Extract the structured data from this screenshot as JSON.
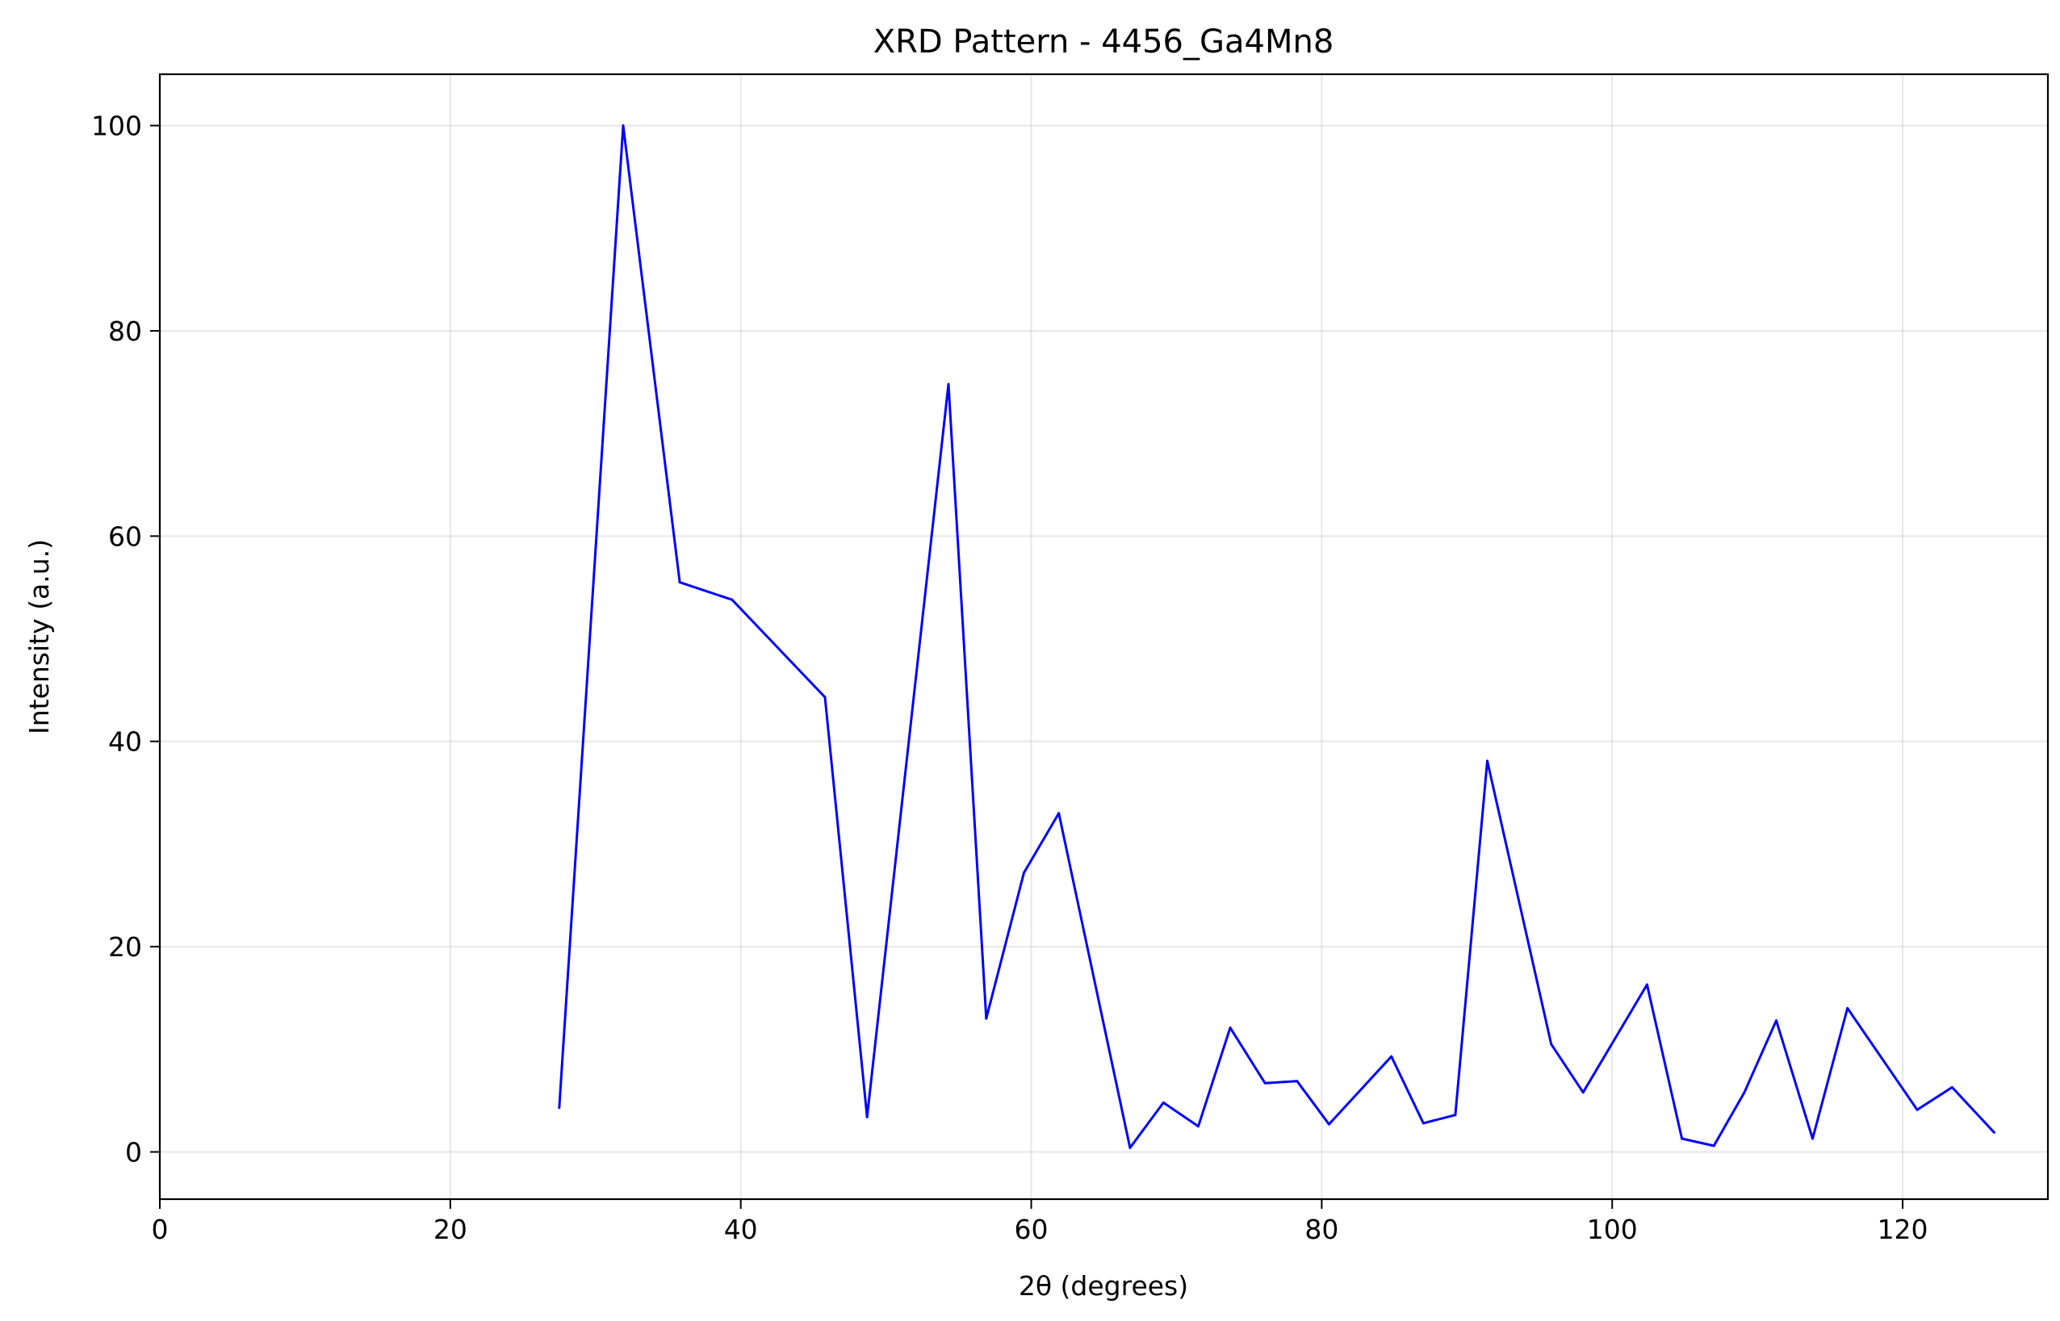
{
  "chart_data": {
    "type": "line",
    "title": "XRD Pattern - 4456_Ga4Mn8",
    "xlabel": "2θ (degrees)",
    "ylabel": "Intensity (a.u.)",
    "xlim": [
      0,
      130
    ],
    "ylim": [
      -4.6,
      105
    ],
    "xticks": [
      0,
      20,
      40,
      60,
      80,
      100,
      120
    ],
    "yticks": [
      0,
      20,
      40,
      60,
      80,
      100
    ],
    "grid": true,
    "line_color": "#0000ff",
    "series": [
      {
        "x": [
          27.5,
          31.9,
          35.8,
          39.4,
          45.8,
          48.7,
          54.3,
          56.9,
          59.5,
          61.9,
          66.8,
          69.1,
          71.5,
          73.7,
          76.1,
          78.3,
          80.5,
          84.8,
          87.0,
          89.2,
          91.4,
          95.8,
          98.0,
          102.4,
          104.8,
          107.0,
          109.1,
          111.3,
          113.8,
          116.2,
          121.0,
          123.4,
          126.3
        ],
        "y": [
          4.3,
          100.0,
          55.5,
          53.8,
          44.3,
          3.4,
          74.8,
          13.0,
          27.2,
          33.0,
          0.4,
          4.8,
          2.5,
          12.1,
          6.7,
          6.9,
          2.7,
          9.3,
          2.8,
          3.6,
          38.1,
          10.5,
          5.8,
          16.3,
          1.3,
          0.6,
          5.8,
          12.8,
          1.3,
          14.0,
          4.1,
          6.3,
          1.9
        ]
      }
    ]
  }
}
